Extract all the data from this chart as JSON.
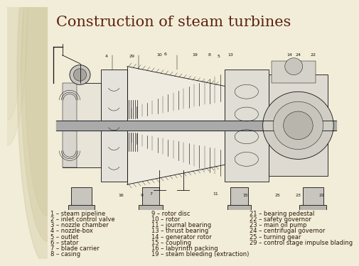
{
  "title": "Construction of steam turbines",
  "title_color": "#5a2010",
  "title_fontsize": 15,
  "bg_color": "#f2edd8",
  "left_panel_color": "#e5d9b6",
  "left_panel_circle_color": "#ccc49a",
  "text_color": "#2a1a08",
  "legend_fontsize": 6.0,
  "diagram_bg": "#f8f6f0",
  "col1_items": [
    "1 – steam pipeline",
    "2 – inlet control valve",
    "3 – nozzle chamber",
    "4 – nozzle-box",
    "5 – outlet",
    "6 – stator",
    "7 – blade carrier",
    "8 – casing"
  ],
  "col2_items": [
    "9 – rotor disc",
    "10 – rotor",
    "11 – journal bearing",
    "13 – thrust bearing",
    "14 – generator rotor",
    "15 – coupling",
    "16 – labyrinth packing",
    "19 – steam bleeding (extraction)"
  ],
  "col3_items": [
    "21 – bearing pedestal",
    "22 – safety governor",
    "23 – main oil pump",
    "24 – centrifugal governor",
    "25 – turning gear",
    "29 – control stage impulse blading",
    "",
    ""
  ]
}
